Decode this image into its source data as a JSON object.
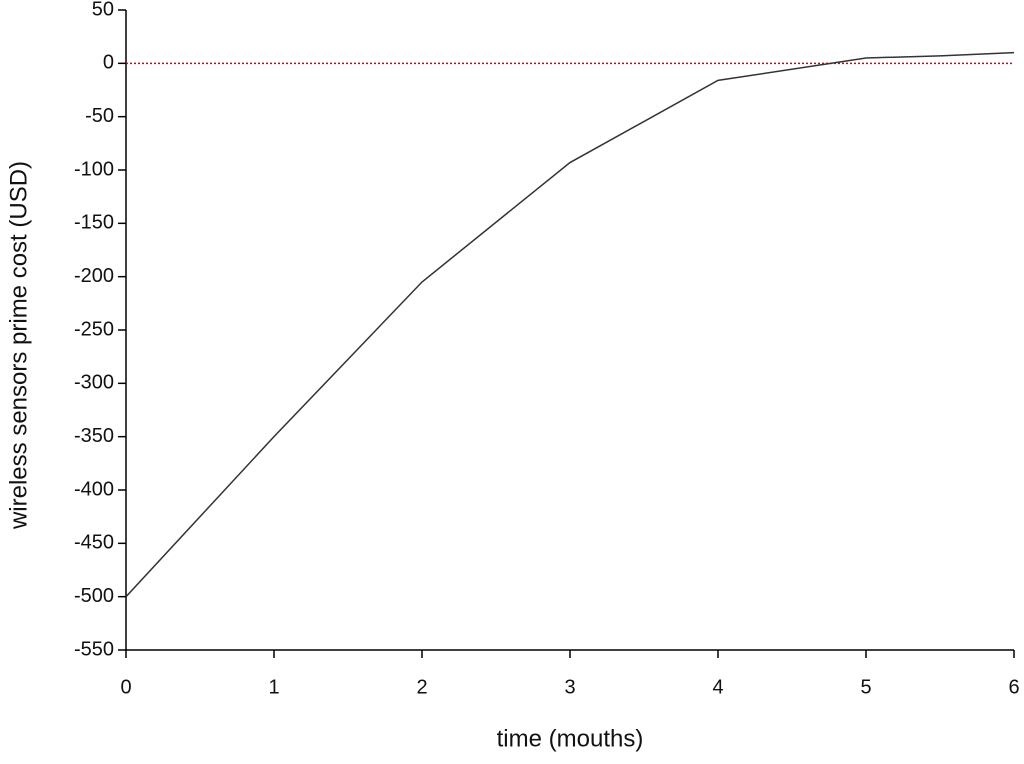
{
  "chart_data": {
    "type": "line",
    "x_label": "time (mouths)",
    "y_label": "wireless sensors prime cost (USD)",
    "x": [
      0,
      1,
      2,
      3,
      4,
      5,
      5.5,
      6
    ],
    "series": [
      {
        "color": "#333333",
        "values": [
          -500,
          -350,
          -205,
          -93,
          -16,
          5,
          7,
          10
        ]
      }
    ],
    "xlim": [
      0,
      6
    ],
    "xticks": [
      0,
      1,
      2,
      3,
      4,
      5,
      6
    ],
    "ylim": [
      -550,
      50
    ],
    "yticks": [
      -550,
      -500,
      -450,
      -400,
      -350,
      -300,
      -250,
      -200,
      -150,
      -100,
      -50,
      0,
      50
    ],
    "reference_y": 0,
    "reference_color": "#e00000"
  }
}
